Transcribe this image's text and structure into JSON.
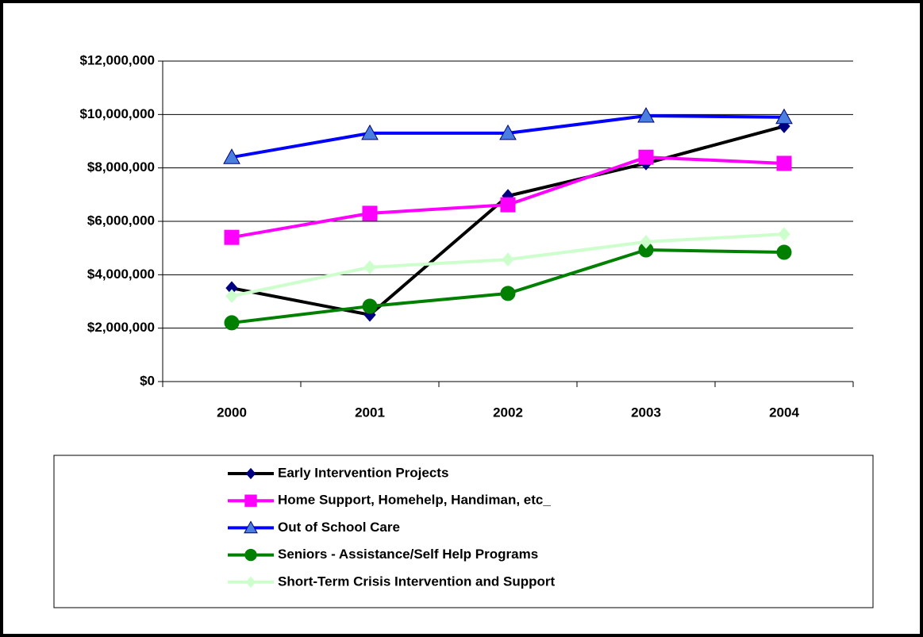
{
  "chart_data": {
    "type": "line",
    "categories": [
      "2000",
      "2001",
      "2002",
      "2003",
      "2004"
    ],
    "series": [
      {
        "name": "Early Intervention Projects",
        "color": "#000000",
        "marker": "diamond",
        "values": [
          3500000,
          2500000,
          6950000,
          8170000,
          9560000
        ]
      },
      {
        "name": "Home Support, Homehelp, Handiman, etc_",
        "color": "#ff00ff",
        "marker": "square",
        "values": [
          5400000,
          6300000,
          6620000,
          8400000,
          8170000
        ]
      },
      {
        "name": "Out of School Care",
        "color": "#0000ff",
        "marker": "triangle",
        "values": [
          8400000,
          9300000,
          9300000,
          9950000,
          9900000
        ]
      },
      {
        "name": "Seniors - Assistance/Self Help Programs",
        "color": "#008000",
        "marker": "circle",
        "values": [
          2200000,
          2820000,
          3300000,
          4930000,
          4840000
        ]
      },
      {
        "name": "Short-Term Crisis Intervention and Support",
        "color": "#ccffcc",
        "marker": "diamond",
        "values": [
          3200000,
          4280000,
          4570000,
          5230000,
          5520000
        ]
      }
    ],
    "ylim": [
      0,
      12000000
    ],
    "yticks": [
      {
        "value": 0,
        "label": "$0"
      },
      {
        "value": 2000000,
        "label": "$2,000,000"
      },
      {
        "value": 4000000,
        "label": "$4,000,000"
      },
      {
        "value": 6000000,
        "label": "$6,000,000"
      },
      {
        "value": 8000000,
        "label": "$8,000,000"
      },
      {
        "value": 10000000,
        "label": "$10,000,000"
      },
      {
        "value": 12000000,
        "label": "$12,000,000"
      }
    ],
    "grid": true
  }
}
